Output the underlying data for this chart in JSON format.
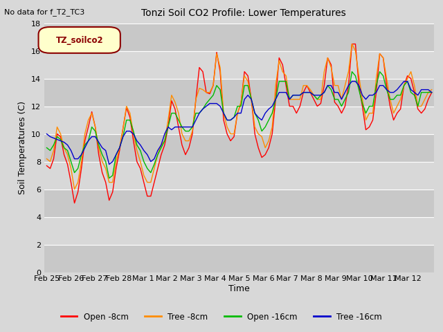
{
  "title": "Tonzi Soil CO2 Profile: Lower Temperatures",
  "subtitle": "No data for f_T2_TC3",
  "ylabel": "Soil Temperatures (C)",
  "xlabel": "Time",
  "legend_label": "TZ_soilco2",
  "ylim": [
    0,
    18
  ],
  "xtick_labels": [
    "Feb 25",
    "Feb 26",
    "Feb 27",
    "Feb 28",
    "Mar 1",
    "Mar 2",
    "Mar 3",
    "Mar 4",
    "Mar 5",
    "Mar 6",
    "Mar 7",
    "Mar 8",
    "Mar 9",
    "Mar 10",
    "Mar 11",
    "Mar 12"
  ],
  "series_labels": [
    "Open -8cm",
    "Tree -8cm",
    "Open -16cm",
    "Tree -16cm"
  ],
  "series_colors": [
    "#ff0000",
    "#ff8c00",
    "#00bb00",
    "#0000cc"
  ],
  "bg_color": "#d8d8d8",
  "open8": [
    7.7,
    7.5,
    8.2,
    10.0,
    9.8,
    8.5,
    7.8,
    6.5,
    5.0,
    5.8,
    7.5,
    9.5,
    10.5,
    11.6,
    10.5,
    8.5,
    7.2,
    6.5,
    5.2,
    5.8,
    7.5,
    8.8,
    10.4,
    11.9,
    11.2,
    9.5,
    8.0,
    7.5,
    6.5,
    5.5,
    5.5,
    6.5,
    7.5,
    8.5,
    9.2,
    10.5,
    12.4,
    11.8,
    10.5,
    9.2,
    8.5,
    9.0,
    10.0,
    12.5,
    14.8,
    14.5,
    13.0,
    12.9,
    13.5,
    15.9,
    14.5,
    11.0,
    10.0,
    9.5,
    9.8,
    11.5,
    12.2,
    14.5,
    14.2,
    12.5,
    10.0,
    9.0,
    8.3,
    8.5,
    9.0,
    10.0,
    12.5,
    15.5,
    15.0,
    13.5,
    12.0,
    12.0,
    11.5,
    12.0,
    13.0,
    13.5,
    13.0,
    12.5,
    12.0,
    12.2,
    13.5,
    15.5,
    15.0,
    12.3,
    12.0,
    11.5,
    12.0,
    13.5,
    16.5,
    16.5,
    13.5,
    12.0,
    10.3,
    10.5,
    11.0,
    13.0,
    15.8,
    15.5,
    13.5,
    12.0,
    11.0,
    11.5,
    11.8,
    13.5,
    14.2,
    14.0,
    13.0,
    11.8,
    11.5,
    11.8,
    12.5,
    13.0
  ],
  "tree8": [
    8.2,
    8.0,
    8.8,
    10.5,
    10.0,
    9.0,
    8.5,
    7.5,
    6.0,
    6.5,
    8.0,
    10.0,
    11.0,
    11.5,
    10.5,
    9.0,
    8.0,
    7.5,
    6.5,
    6.5,
    8.0,
    9.0,
    10.4,
    12.0,
    11.5,
    10.0,
    8.8,
    8.0,
    7.0,
    6.5,
    6.5,
    7.5,
    8.5,
    9.2,
    9.5,
    11.0,
    12.8,
    12.3,
    11.5,
    10.0,
    9.5,
    9.5,
    10.2,
    12.5,
    13.3,
    13.2,
    13.0,
    13.0,
    13.5,
    15.8,
    14.8,
    11.5,
    10.5,
    10.0,
    10.0,
    11.5,
    12.3,
    14.2,
    13.8,
    12.5,
    10.5,
    10.0,
    9.8,
    9.0,
    9.5,
    10.5,
    13.5,
    15.3,
    14.5,
    14.2,
    12.5,
    12.5,
    12.5,
    12.5,
    13.5,
    13.5,
    13.2,
    12.8,
    12.5,
    12.5,
    14.5,
    15.5,
    14.8,
    13.5,
    13.5,
    12.5,
    13.5,
    14.5,
    16.5,
    16.0,
    14.2,
    12.5,
    11.0,
    11.5,
    11.5,
    14.0,
    15.8,
    15.5,
    14.0,
    12.5,
    11.5,
    12.0,
    12.5,
    13.5,
    14.0,
    14.5,
    13.5,
    12.0,
    12.0,
    12.5,
    13.0,
    13.2
  ],
  "open16": [
    9.0,
    8.8,
    9.2,
    9.8,
    9.6,
    9.0,
    8.8,
    8.0,
    7.2,
    7.5,
    8.5,
    9.2,
    9.5,
    10.5,
    10.2,
    9.2,
    8.5,
    8.0,
    6.8,
    7.0,
    8.5,
    9.0,
    9.8,
    11.0,
    11.0,
    10.2,
    9.2,
    8.8,
    8.0,
    7.5,
    7.2,
    7.8,
    8.5,
    9.0,
    9.5,
    10.5,
    11.5,
    11.5,
    11.0,
    10.5,
    10.2,
    10.2,
    10.5,
    11.5,
    11.5,
    11.8,
    12.2,
    12.5,
    12.8,
    13.5,
    13.2,
    11.5,
    11.0,
    11.0,
    11.2,
    12.0,
    12.0,
    13.5,
    13.5,
    12.5,
    11.5,
    11.0,
    10.2,
    10.5,
    11.0,
    11.5,
    12.5,
    13.8,
    13.8,
    13.8,
    12.5,
    12.8,
    12.8,
    12.8,
    13.0,
    13.0,
    13.0,
    12.8,
    12.5,
    12.8,
    13.0,
    13.5,
    13.2,
    12.5,
    12.5,
    12.0,
    12.5,
    13.0,
    14.5,
    14.2,
    13.2,
    12.2,
    11.5,
    12.0,
    12.0,
    13.5,
    14.5,
    14.2,
    13.2,
    12.5,
    12.5,
    12.8,
    12.8,
    13.5,
    13.8,
    13.0,
    12.8,
    12.0,
    13.0,
    13.0,
    13.0,
    13.0
  ],
  "tree16": [
    10.0,
    9.8,
    9.7,
    9.6,
    9.5,
    9.4,
    9.2,
    8.8,
    8.2,
    8.2,
    8.5,
    9.0,
    9.5,
    9.8,
    9.8,
    9.4,
    9.0,
    8.8,
    7.8,
    8.0,
    8.5,
    9.0,
    9.8,
    10.2,
    10.2,
    10.0,
    9.5,
    9.2,
    8.8,
    8.5,
    8.0,
    8.2,
    8.8,
    9.2,
    10.0,
    10.5,
    10.3,
    10.5,
    10.5,
    10.5,
    10.5,
    10.5,
    10.5,
    11.0,
    11.5,
    11.8,
    12.0,
    12.2,
    12.2,
    12.2,
    12.0,
    11.5,
    11.0,
    11.0,
    11.2,
    11.5,
    11.5,
    12.5,
    12.8,
    12.5,
    11.5,
    11.2,
    11.0,
    11.5,
    11.8,
    12.0,
    12.5,
    13.0,
    13.0,
    13.0,
    12.5,
    12.8,
    12.8,
    12.8,
    13.0,
    13.0,
    13.0,
    12.8,
    12.8,
    12.8,
    13.0,
    13.5,
    13.5,
    13.0,
    13.0,
    12.5,
    13.0,
    13.5,
    13.8,
    13.8,
    13.5,
    12.8,
    12.5,
    12.8,
    12.8,
    13.0,
    13.5,
    13.5,
    13.2,
    13.0,
    13.0,
    13.2,
    13.5,
    13.8,
    13.8,
    13.2,
    13.0,
    12.8,
    13.2,
    13.2,
    13.2,
    13.0
  ]
}
